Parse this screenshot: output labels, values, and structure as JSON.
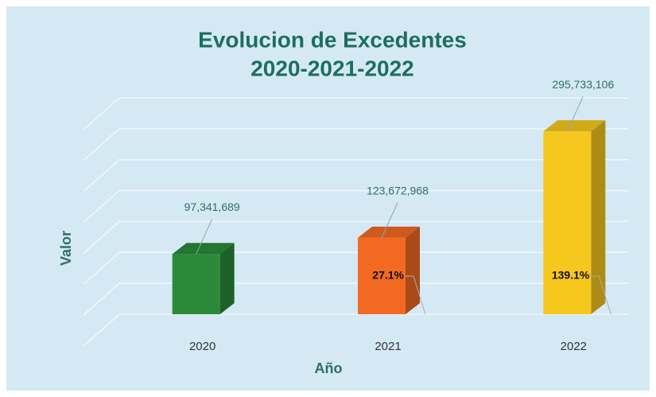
{
  "chart_data": {
    "type": "bar3d",
    "title": "Evolucion de Excedentes",
    "subtitle": "2020-2021-2022",
    "x_label": "Año",
    "y_label": "Valor",
    "categories": [
      "2020",
      "2021",
      "2022"
    ],
    "values": [
      97341689,
      123672968,
      295733106
    ],
    "value_labels": [
      "97,341,689",
      "123,672,968",
      "295,733,106"
    ],
    "growth": [
      null,
      27.1,
      139.1
    ],
    "growth_labels": [
      null,
      "27.1%",
      "139.1%"
    ],
    "colors": [
      "#2a8a3a",
      "#f26a22",
      "#f6c81e"
    ],
    "ylim": [
      0,
      350000000
    ],
    "yticks": [
      0,
      50000000,
      100000000,
      150000000,
      200000000,
      250000000,
      300000000,
      350000000
    ],
    "grid": true
  }
}
